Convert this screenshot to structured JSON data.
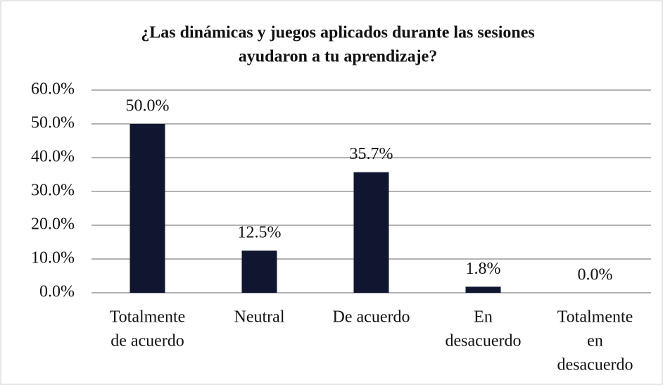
{
  "chart_data": {
    "type": "bar",
    "title": [
      "¿Las dinámicas y juegos aplicados durante las sesiones",
      "ayudaron a tu aprendizaje?"
    ],
    "categories": [
      [
        "Totalmente",
        "de acuerdo"
      ],
      [
        "Neutral"
      ],
      [
        "De acuerdo"
      ],
      [
        "En",
        "desacuerdo"
      ],
      [
        "Totalmente",
        "en",
        "desacuerdo"
      ]
    ],
    "values": [
      50,
      12.5,
      35.7,
      1.8,
      0
    ],
    "value_labels": [
      "50.0%",
      "12.5%",
      "35.7%",
      "1.8%",
      "0.0%"
    ],
    "color": "#111630",
    "ylim": [
      0,
      60
    ],
    "yticks": [
      {
        "value": 0,
        "label": "0.0%"
      },
      {
        "value": 10,
        "label": "10.0%"
      },
      {
        "value": 20,
        "label": "20.0%"
      },
      {
        "value": 30,
        "label": "30.0%"
      },
      {
        "value": 40,
        "label": "40.0%"
      },
      {
        "value": 50,
        "label": "50.0%"
      },
      {
        "value": 60,
        "label": "60.0%"
      }
    ],
    "grid": true
  }
}
